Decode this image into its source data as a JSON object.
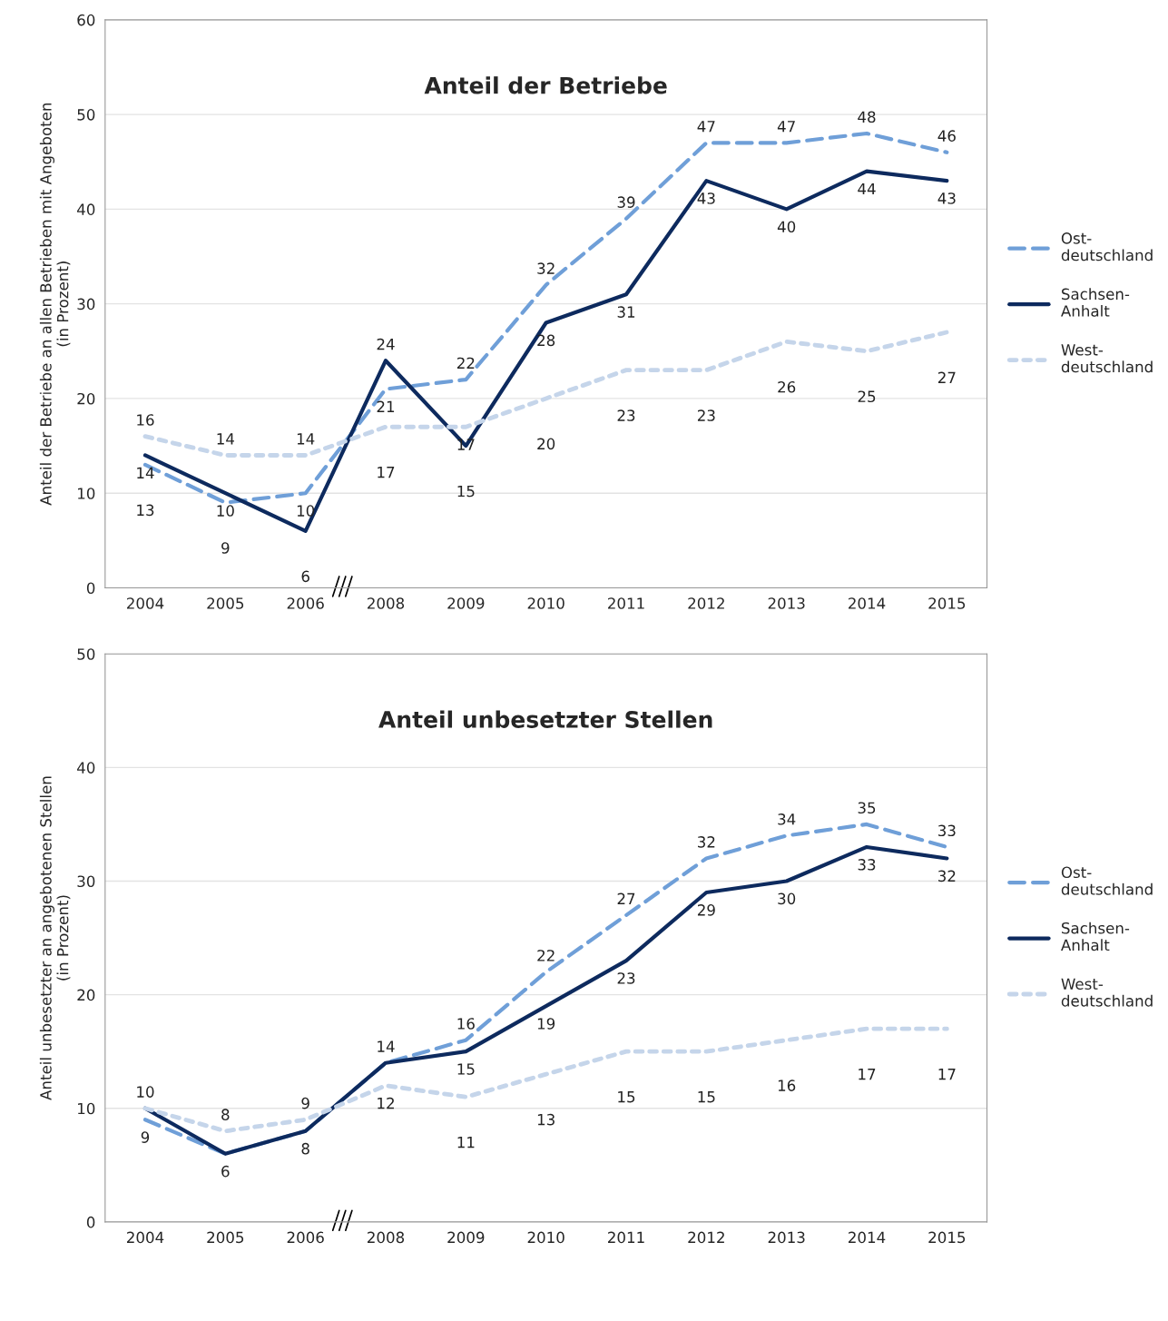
{
  "chart_data": [
    {
      "type": "line",
      "title": "Anteil der Betriebe",
      "ylabel": "Anteil der Betriebe an allen Betrieben mit Angeboten\n(in Prozent)",
      "categories": [
        "2004",
        "2005",
        "2006",
        "2008",
        "2009",
        "2010",
        "2011",
        "2012",
        "2013",
        "2014",
        "2015"
      ],
      "ylim": [
        0,
        60
      ],
      "yticks": [
        0,
        10,
        20,
        30,
        40,
        50,
        60
      ],
      "grid": "y",
      "legend": "right",
      "data_labels": true,
      "series": [
        {
          "name": "Ost-\ndeutschland",
          "color": "#6f9fd8",
          "line_style": "dashed",
          "values": [
            13,
            9,
            10,
            21,
            22,
            32,
            39,
            47,
            47,
            48,
            46
          ]
        },
        {
          "name": "Sachsen-\nAnhalt",
          "color": "#0d2a5e",
          "line_style": "solid",
          "values": [
            14,
            10,
            6,
            24,
            15,
            28,
            31,
            43,
            40,
            44,
            43
          ]
        },
        {
          "name": "West-\ndeutschland",
          "color": "#c5d5ea",
          "line_style": "dotted",
          "values": [
            16,
            14,
            14,
            17,
            17,
            20,
            23,
            23,
            26,
            25,
            27
          ]
        }
      ]
    },
    {
      "type": "line",
      "title": "Anteil unbesetzter Stellen",
      "ylabel": "Anteil unbesetzter an angebotenen Stellen\n(in Prozent)",
      "categories": [
        "2004",
        "2005",
        "2006",
        "2008",
        "2009",
        "2010",
        "2011",
        "2012",
        "2013",
        "2014",
        "2015"
      ],
      "ylim": [
        0,
        50
      ],
      "yticks": [
        0,
        10,
        20,
        30,
        40,
        50
      ],
      "grid": "y",
      "legend": "right",
      "series": [
        {
          "name": "Ost-\ndeutschland",
          "color": "#6f9fd8",
          "line_style": "dashed",
          "values": [
            9,
            6,
            8,
            14,
            16,
            22,
            27,
            32,
            34,
            35,
            33
          ],
          "value_labels": [
            "9",
            null,
            null,
            "14",
            "16",
            "22",
            "27",
            "32",
            "34",
            "35",
            "33"
          ]
        },
        {
          "name": "Sachsen-\nAnhalt",
          "color": "#0d2a5e",
          "line_style": "solid",
          "values": [
            10,
            6,
            8,
            14,
            15,
            19,
            23,
            29,
            30,
            33,
            32
          ],
          "value_labels": [
            "10",
            "6",
            "8",
            null,
            "15",
            "19",
            "23",
            "29",
            "30",
            "33",
            "32"
          ]
        },
        {
          "name": "West-\ndeutschland",
          "color": "#c5d5ea",
          "line_style": "dotted",
          "values": [
            10,
            8,
            9,
            12,
            11,
            13,
            15,
            15,
            16,
            17,
            17
          ],
          "value_labels": [
            null,
            "8",
            "9",
            "12",
            "11",
            "13",
            "15",
            "15",
            "16",
            "17",
            "17"
          ]
        }
      ]
    }
  ]
}
